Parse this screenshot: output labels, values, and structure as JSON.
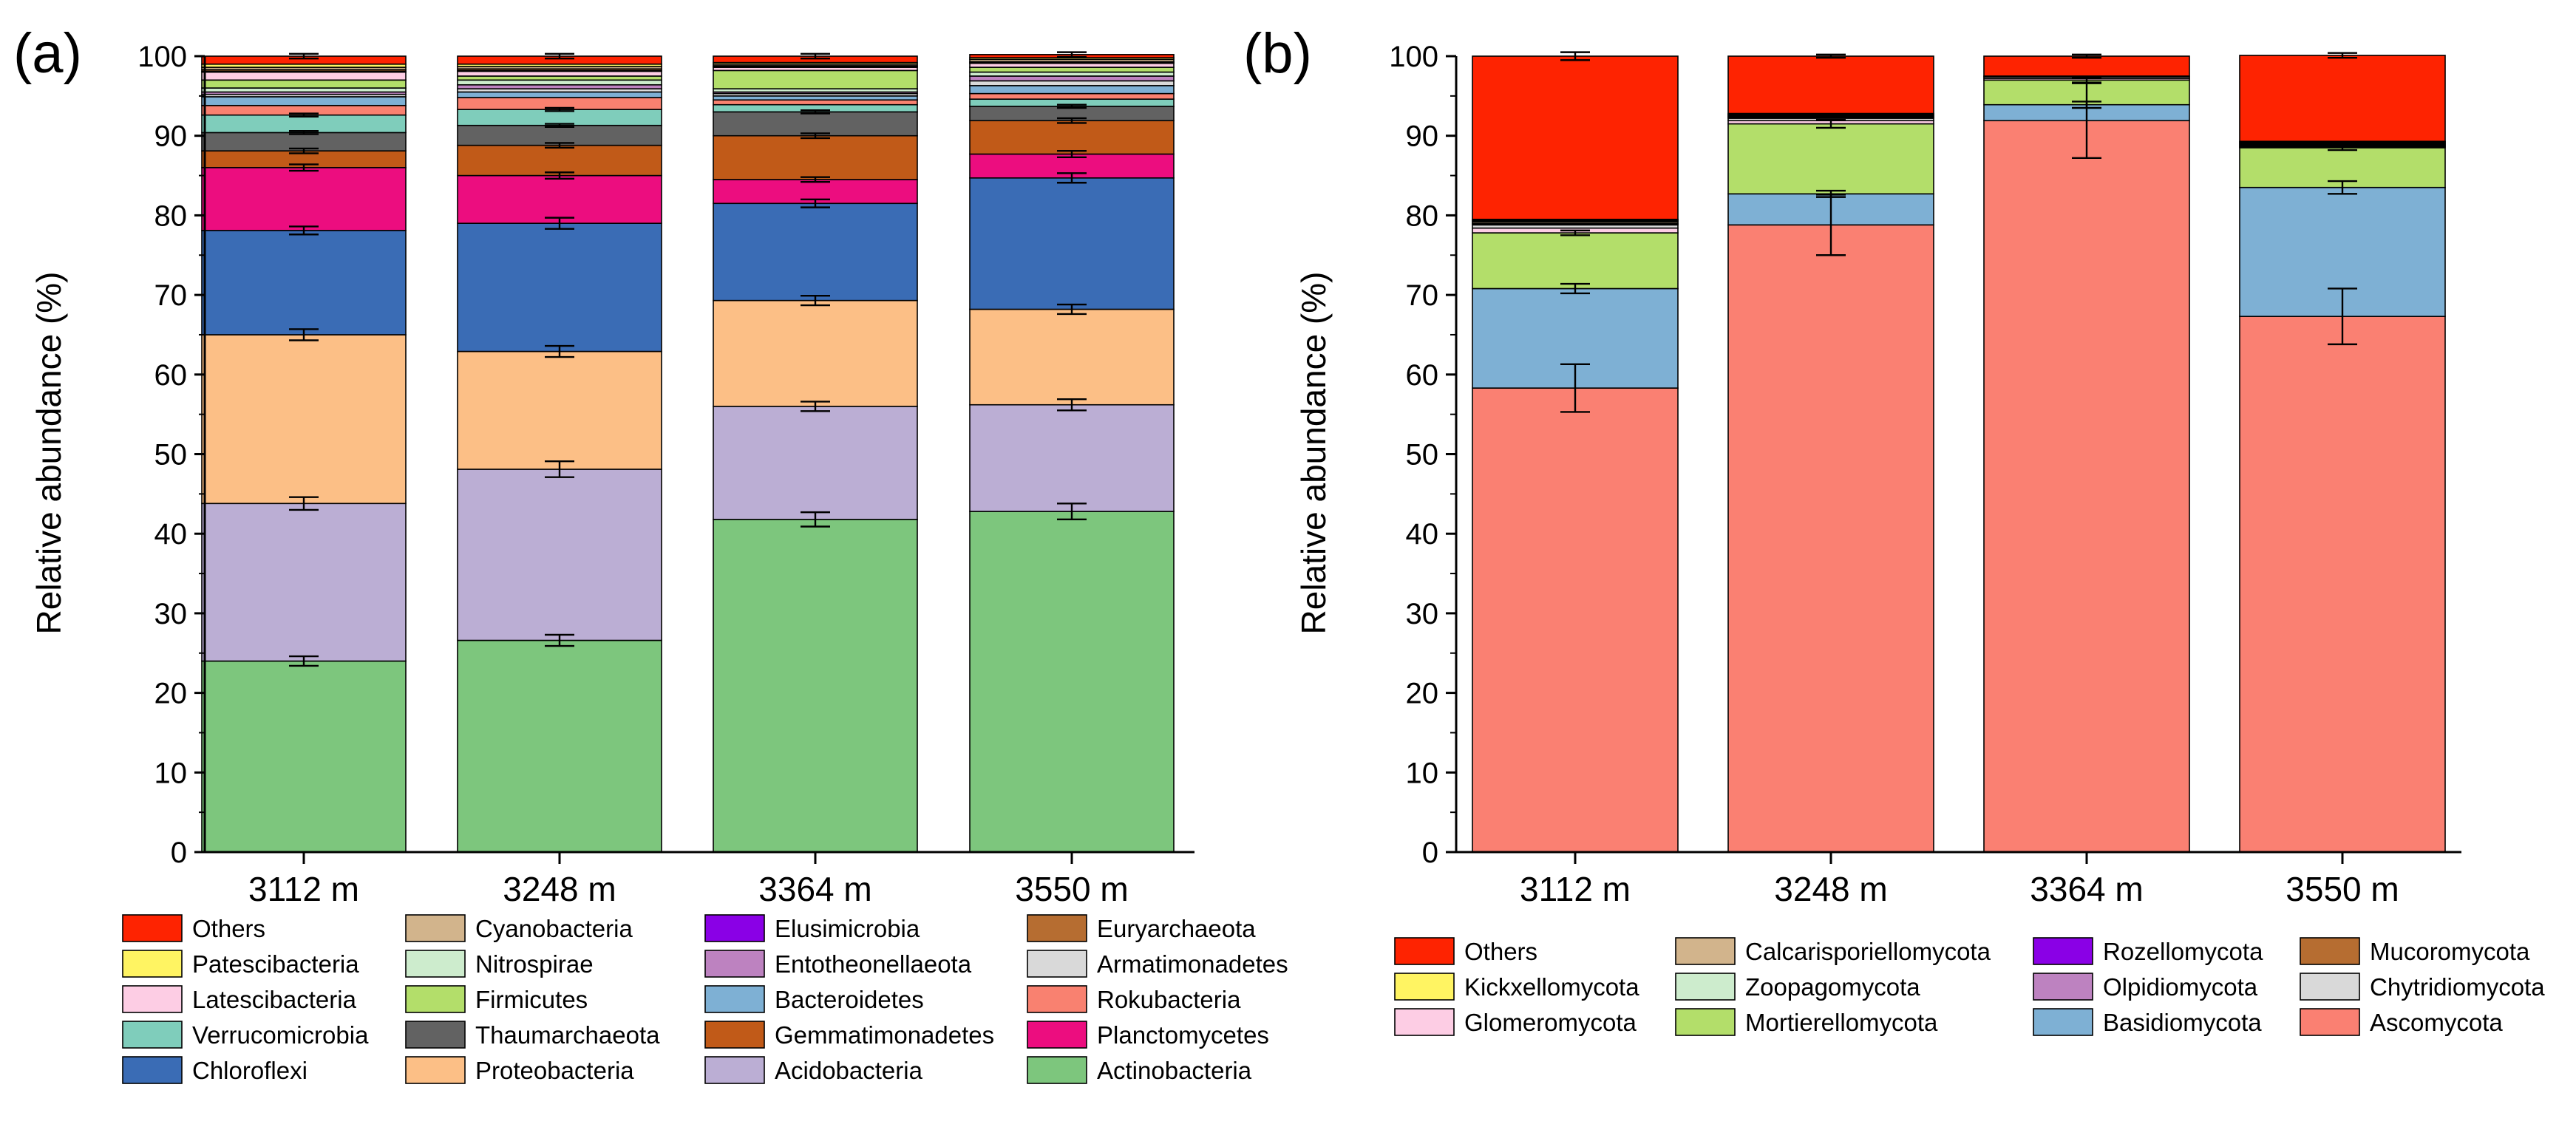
{
  "chart_data": [
    {
      "type": "bar",
      "stacked": true,
      "panel_label": "(a)",
      "title": "",
      "xlabel": "",
      "ylabel": "Relative abundance (%)",
      "ylim": [
        0,
        100
      ],
      "yticks": [
        "0",
        "10",
        "20",
        "30",
        "40",
        "50",
        "60",
        "70",
        "80",
        "90",
        "100"
      ],
      "grid": false,
      "legend_position": "bottom",
      "categories": [
        "3112 m",
        "3248 m",
        "3364 m",
        "3550 m"
      ],
      "series": [
        {
          "name": "Actinobacteria",
          "color": "#7dc67d",
          "values": [
            24.0,
            26.6,
            41.8,
            42.8
          ],
          "err": [
            0.6,
            0.7,
            0.9,
            1.0
          ]
        },
        {
          "name": "Acidobacteria",
          "color": "#bbaed4",
          "values": [
            19.8,
            21.5,
            14.2,
            13.4
          ],
          "err": [
            0.8,
            1.0,
            0.6,
            0.7
          ]
        },
        {
          "name": "Proteobacteria",
          "color": "#fcbf86",
          "values": [
            21.2,
            14.8,
            13.3,
            12.0
          ],
          "err": [
            0.7,
            0.7,
            0.6,
            0.6
          ]
        },
        {
          "name": "Chloroflexi",
          "color": "#3a6cb5",
          "values": [
            13.1,
            16.1,
            12.2,
            16.5
          ],
          "err": [
            0.5,
            0.7,
            0.5,
            0.6
          ]
        },
        {
          "name": "Planctomycetes",
          "color": "#ec0d7f",
          "values": [
            7.9,
            6.0,
            3.0,
            3.0
          ],
          "err": [
            0.4,
            0.4,
            0.3,
            0.4
          ]
        },
        {
          "name": "Gemmatimonadetes",
          "color": "#c15a18",
          "values": [
            2.1,
            3.8,
            5.5,
            4.2
          ],
          "err": [
            0.3,
            0.3,
            0.3,
            0.3
          ]
        },
        {
          "name": "Thaumarchaeota",
          "color": "#626262",
          "values": [
            2.3,
            2.5,
            3.0,
            1.8
          ],
          "err": [
            0.2,
            0.2,
            0.2,
            0.2
          ]
        },
        {
          "name": "Verrucomicrobia",
          "color": "#7fcdbb",
          "values": [
            2.2,
            2.0,
            0.9,
            0.9
          ],
          "err": [
            0.2,
            0.2,
            0.1,
            0.1
          ]
        },
        {
          "name": "Rokubacteria",
          "color": "#f98170",
          "values": [
            1.2,
            1.5,
            0.6,
            0.7
          ],
          "err": [
            0.1,
            0.1,
            0.1,
            0.1
          ]
        },
        {
          "name": "Bacteroidetes",
          "color": "#7eb0d4",
          "values": [
            1.1,
            0.7,
            0.5,
            1.0
          ],
          "err": [
            0.1,
            0.1,
            0.1,
            0.1
          ]
        },
        {
          "name": "Armatimonadetes",
          "color": "#d9d9d9",
          "values": [
            0.3,
            0.4,
            0.3,
            0.6
          ],
          "err": [
            0.05,
            0.05,
            0.05,
            0.05
          ]
        },
        {
          "name": "Entotheonellaeota",
          "color": "#bd82c0",
          "values": [
            0.3,
            0.5,
            0.2,
            0.6
          ],
          "err": [
            0.05,
            0.05,
            0.05,
            0.05
          ]
        },
        {
          "name": "Nitrospirae",
          "color": "#cdeccd",
          "values": [
            0.5,
            0.6,
            0.4,
            0.5
          ],
          "err": [
            0.05,
            0.05,
            0.05,
            0.05
          ]
        },
        {
          "name": "Firmicutes",
          "color": "#b3de6a",
          "values": [
            1.0,
            0.5,
            2.3,
            0.6
          ],
          "err": [
            0.1,
            0.1,
            0.1,
            0.1
          ]
        },
        {
          "name": "Latescibacteria",
          "color": "#fdcde4",
          "values": [
            1.0,
            0.6,
            0.4,
            0.5
          ],
          "err": [
            0.1,
            0.1,
            0.05,
            0.05
          ]
        },
        {
          "name": "Elusimicrobia",
          "color": "#8a00e6",
          "values": [
            0.1,
            0.1,
            0.1,
            0.1
          ],
          "err": [
            0.02,
            0.02,
            0.02,
            0.02
          ]
        },
        {
          "name": "Euryarchaeota",
          "color": "#b66d31",
          "values": [
            0.2,
            0.2,
            0.1,
            0.1
          ],
          "err": [
            0.02,
            0.02,
            0.02,
            0.02
          ]
        },
        {
          "name": "Cyanobacteria",
          "color": "#d2b48c",
          "values": [
            0.3,
            0.3,
            0.2,
            0.3
          ],
          "err": [
            0.03,
            0.03,
            0.03,
            0.03
          ]
        },
        {
          "name": "Patescibacteria",
          "color": "#fff462",
          "values": [
            0.4,
            0.3,
            0.2,
            0.2
          ],
          "err": [
            0.03,
            0.03,
            0.03,
            0.03
          ]
        },
        {
          "name": "Others",
          "color": "#fe2301",
          "values": [
            1.0,
            1.0,
            0.8,
            0.4
          ],
          "err": [
            0.3,
            0.3,
            0.3,
            0.3
          ]
        }
      ],
      "legend_rows": [
        [
          "Others",
          "Cyanobacteria",
          "Elusimicrobia",
          "Euryarchaeota"
        ],
        [
          "Patescibacteria",
          "Nitrospirae",
          "Entotheonellaeota",
          "Armatimonadetes"
        ],
        [
          "Latescibacteria",
          "Firmicutes",
          "Bacteroidetes",
          "Rokubacteria"
        ],
        [
          "Verrucomicrobia",
          "Thaumarchaeota",
          "Gemmatimonadetes",
          "Planctomycetes"
        ],
        [
          "Chloroflexi",
          "Proteobacteria",
          "Acidobacteria",
          "Actinobacteria"
        ]
      ]
    },
    {
      "type": "bar",
      "stacked": true,
      "panel_label": "(b)",
      "title": "",
      "xlabel": "",
      "ylabel": "Relative abundance (%)",
      "ylim": [
        0,
        100
      ],
      "yticks": [
        "0",
        "10",
        "20",
        "30",
        "40",
        "50",
        "60",
        "70",
        "80",
        "90",
        "100"
      ],
      "grid": false,
      "legend_position": "bottom",
      "categories": [
        "3112 m",
        "3248 m",
        "3364 m",
        "3550 m"
      ],
      "series": [
        {
          "name": "Ascomycota",
          "color": "#fa8072",
          "values": [
            58.3,
            78.8,
            91.9,
            67.3
          ],
          "err": [
            3.0,
            3.8,
            4.7,
            3.5
          ]
        },
        {
          "name": "Basidiomycota",
          "color": "#7eb0d4",
          "values": [
            12.5,
            3.9,
            2.0,
            16.2
          ],
          "err": [
            0.6,
            0.4,
            0.4,
            0.8
          ]
        },
        {
          "name": "Mortierellomycota",
          "color": "#b3de6a",
          "values": [
            7.0,
            8.8,
            3.1,
            5.0
          ],
          "err": [
            0.3,
            0.5,
            0.3,
            0.3
          ]
        },
        {
          "name": "Glomeromycota",
          "color": "#fdcde4",
          "values": [
            0.6,
            0.4,
            0.2,
            0.1
          ],
          "err": [
            0.05,
            0.05,
            0.05,
            0.05
          ]
        },
        {
          "name": "Chytridiomycota",
          "color": "#d9d9d9",
          "values": [
            0.4,
            0.3,
            0.2,
            0.1
          ],
          "err": [
            0.05,
            0.05,
            0.05,
            0.05
          ]
        },
        {
          "name": "Zoopagomycota",
          "color": "#cdeccd",
          "values": [
            0.1,
            0.1,
            0.1,
            0.1
          ],
          "err": [
            0.02,
            0.02,
            0.02,
            0.02
          ]
        },
        {
          "name": "Olpidiomycota",
          "color": "#bd82c0",
          "values": [
            0.1,
            0.1,
            0.0,
            0.1
          ],
          "err": [
            0.02,
            0.02,
            0.0,
            0.02
          ]
        },
        {
          "name": "Calcarisporiellomycota",
          "color": "#d2b48c",
          "values": [
            0.2,
            0.1,
            0.0,
            0.1
          ],
          "err": [
            0.02,
            0.02,
            0.0,
            0.02
          ]
        },
        {
          "name": "Mucoromycota",
          "color": "#b66d31",
          "values": [
            0.1,
            0.1,
            0.0,
            0.1
          ],
          "err": [
            0.02,
            0.02,
            0.0,
            0.02
          ]
        },
        {
          "name": "Rozellomycota",
          "color": "#8a00e6",
          "values": [
            0.1,
            0.1,
            0.0,
            0.1
          ],
          "err": [
            0.02,
            0.02,
            0.0,
            0.02
          ]
        },
        {
          "name": "Kickxellomycota",
          "color": "#fff462",
          "values": [
            0.1,
            0.1,
            0.0,
            0.1
          ],
          "err": [
            0.02,
            0.02,
            0.0,
            0.02
          ]
        },
        {
          "name": "Others",
          "color": "#fe2301",
          "values": [
            20.5,
            7.2,
            2.5,
            10.8
          ],
          "err": [
            0.5,
            0.2,
            0.2,
            0.3
          ]
        }
      ],
      "legend_rows": [
        [
          "Others",
          "Calcarisporiellomycota",
          "Rozellomycota",
          "Mucoromycota"
        ],
        [
          "Kickxellomycota",
          "Zoopagomycota",
          "Olpidiomycota",
          "Chytridiomycota"
        ],
        [
          "Glomeromycota",
          "Mortierellomycota",
          "Basidiomycota",
          "Ascomycota"
        ]
      ]
    }
  ]
}
